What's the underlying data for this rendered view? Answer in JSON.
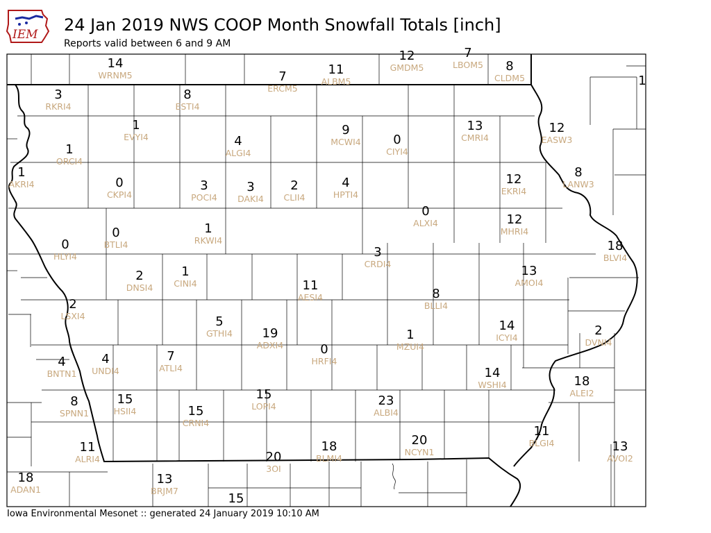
{
  "header": {
    "logo_text": "IEM",
    "title": "24 Jan 2019 NWS COOP Month Snowfall Totals [inch]",
    "subtitle": "Reports valid between 6 and 9 AM"
  },
  "footer": "Iowa Environmental Mesonet :: generated 24 January 2019 10:10 AM",
  "colors": {
    "value": "#000000",
    "station": "#c8a87e",
    "county_line": "#000000"
  },
  "stations": [
    {
      "id": "WRNM5",
      "value": "14"
    },
    {
      "id": "GMDM5",
      "value": "12"
    },
    {
      "id": "LBOM5",
      "value": "7"
    },
    {
      "id": "CLDM5",
      "value": "8"
    },
    {
      "id": "ERCM5",
      "value": "7"
    },
    {
      "id": "ALBM5",
      "value": "11"
    },
    {
      "id": "RKRI4",
      "value": "3"
    },
    {
      "id": "ESTI4",
      "value": "8"
    },
    {
      "id": "EVYI4",
      "value": "1"
    },
    {
      "id": "ORCI4",
      "value": "1"
    },
    {
      "id": "AKRI4",
      "value": "1"
    },
    {
      "id": "ALGI4",
      "value": "4"
    },
    {
      "id": "MCWI4",
      "value": "9"
    },
    {
      "id": "CIYI4",
      "value": "0"
    },
    {
      "id": "CMRI4",
      "value": "13"
    },
    {
      "id": "EASW3",
      "value": "12"
    },
    {
      "id": "LANW3",
      "value": "8"
    },
    {
      "id": "CKPI4",
      "value": "0"
    },
    {
      "id": "POCI4",
      "value": "3"
    },
    {
      "id": "DAKI4",
      "value": "3"
    },
    {
      "id": "CLII4",
      "value": "2"
    },
    {
      "id": "HPTI4",
      "value": "4"
    },
    {
      "id": "EKRI4",
      "value": "12"
    },
    {
      "id": "ALXI4",
      "value": "0"
    },
    {
      "id": "MHRI4",
      "value": "12"
    },
    {
      "id": "BTLI4",
      "value": "0"
    },
    {
      "id": "RKWI4",
      "value": "1"
    },
    {
      "id": "HLYI4",
      "value": "0"
    },
    {
      "id": "CRDI4",
      "value": "3"
    },
    {
      "id": "BLVI4",
      "value": "18"
    },
    {
      "id": "DNSI4",
      "value": "2"
    },
    {
      "id": "CINI4",
      "value": "1"
    },
    {
      "id": "AMOI4",
      "value": "13"
    },
    {
      "id": "AESI4",
      "value": "11"
    },
    {
      "id": "BLLI4",
      "value": "8"
    },
    {
      "id": "LSXI4",
      "value": "2"
    },
    {
      "id": "GTHI4",
      "value": "5"
    },
    {
      "id": "ADXI4",
      "value": "19"
    },
    {
      "id": "ICYI4",
      "value": "14"
    },
    {
      "id": "DVNI4",
      "value": "2"
    },
    {
      "id": "MZUI4",
      "value": "1"
    },
    {
      "id": "HRFI4",
      "value": "0"
    },
    {
      "id": "BNTN1",
      "value": "4"
    },
    {
      "id": "UNDI4",
      "value": "4"
    },
    {
      "id": "ATLI4",
      "value": "7"
    },
    {
      "id": "WSHI4",
      "value": "14"
    },
    {
      "id": "ALEI2",
      "value": "18"
    },
    {
      "id": "SPNN1",
      "value": "8"
    },
    {
      "id": "HSII4",
      "value": "15"
    },
    {
      "id": "CRNI4",
      "value": "15"
    },
    {
      "id": "LOPI4",
      "value": "15"
    },
    {
      "id": "ALBI4",
      "value": "23"
    },
    {
      "id": "NCYN1",
      "value": "20"
    },
    {
      "id": "ALRI4",
      "value": "11"
    },
    {
      "id": "BLMI4",
      "value": "18"
    },
    {
      "id": "BLGI4",
      "value": "11"
    },
    {
      "id": "AVOI2",
      "value": "13"
    },
    {
      "id": "3OI",
      "value": "20"
    },
    {
      "id": "ADAN1",
      "value": "18"
    },
    {
      "id": "BRJM7",
      "value": "13"
    },
    {
      "id": "",
      "value": "15"
    },
    {
      "id": "",
      "value": "1"
    }
  ]
}
